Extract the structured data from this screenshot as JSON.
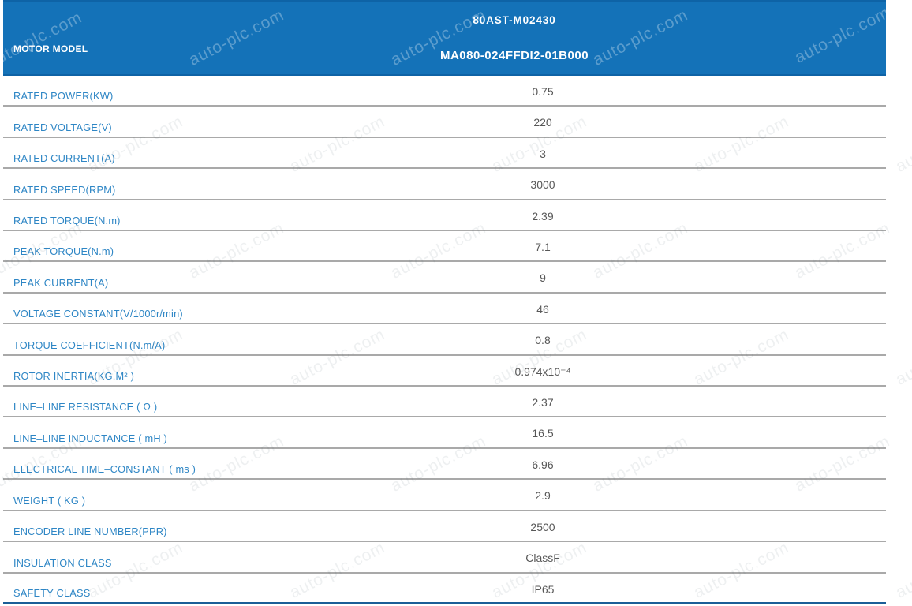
{
  "header": {
    "column_label": "MOTOR MODEL",
    "model_primary": "80AST-M02430",
    "model_secondary": "MA080-024FFDI2-01B000"
  },
  "watermark": {
    "text": "auto-plc.com"
  },
  "colors": {
    "header_bg": "#1472B8",
    "header_edge": "#0E63A6",
    "label_blue": "#2E86C5",
    "value_gray": "#575757",
    "row_border": "#A9A9A9",
    "bottom_border": "#1B5E97"
  },
  "table": {
    "rows": [
      {
        "label": "RATED POWER(KW)",
        "value": "0.75"
      },
      {
        "label": "RATED VOLTAGE(V)",
        "value": "220"
      },
      {
        "label": "RATED CURRENT(A)",
        "value": "3"
      },
      {
        "label": "RATED SPEED(RPM)",
        "value": "3000"
      },
      {
        "label": "RATED TORQUE(N.m)",
        "value": "2.39"
      },
      {
        "label": "PEAK TORQUE(N.m)",
        "value": "7.1"
      },
      {
        "label": "PEAK CURRENT(A)",
        "value": "9"
      },
      {
        "label": "VOLTAGE CONSTANT(V/1000r/min)",
        "value": "46"
      },
      {
        "label": "TORQUE COEFFICIENT(N.m/A)",
        "value": "0.8"
      },
      {
        "label": "ROTOR INERTIA(KG.M² )",
        "value": "0.974x10⁻⁴"
      },
      {
        "label": "LINE–LINE RESISTANCE ( Ω )",
        "value": "2.37"
      },
      {
        "label": "LINE–LINE INDUCTANCE ( mH )",
        "value": "16.5"
      },
      {
        "label": "ELECTRICAL TIME–CONSTANT ( ms )",
        "value": "6.96"
      },
      {
        "label": "WEIGHT ( KG )",
        "value": "2.9"
      },
      {
        "label": "ENCODER LINE NUMBER(PPR)",
        "value": "2500"
      },
      {
        "label": "INSULATION CLASS",
        "value": "ClassF"
      },
      {
        "label": "SAFETY CLASS",
        "value": "IP65"
      }
    ]
  }
}
